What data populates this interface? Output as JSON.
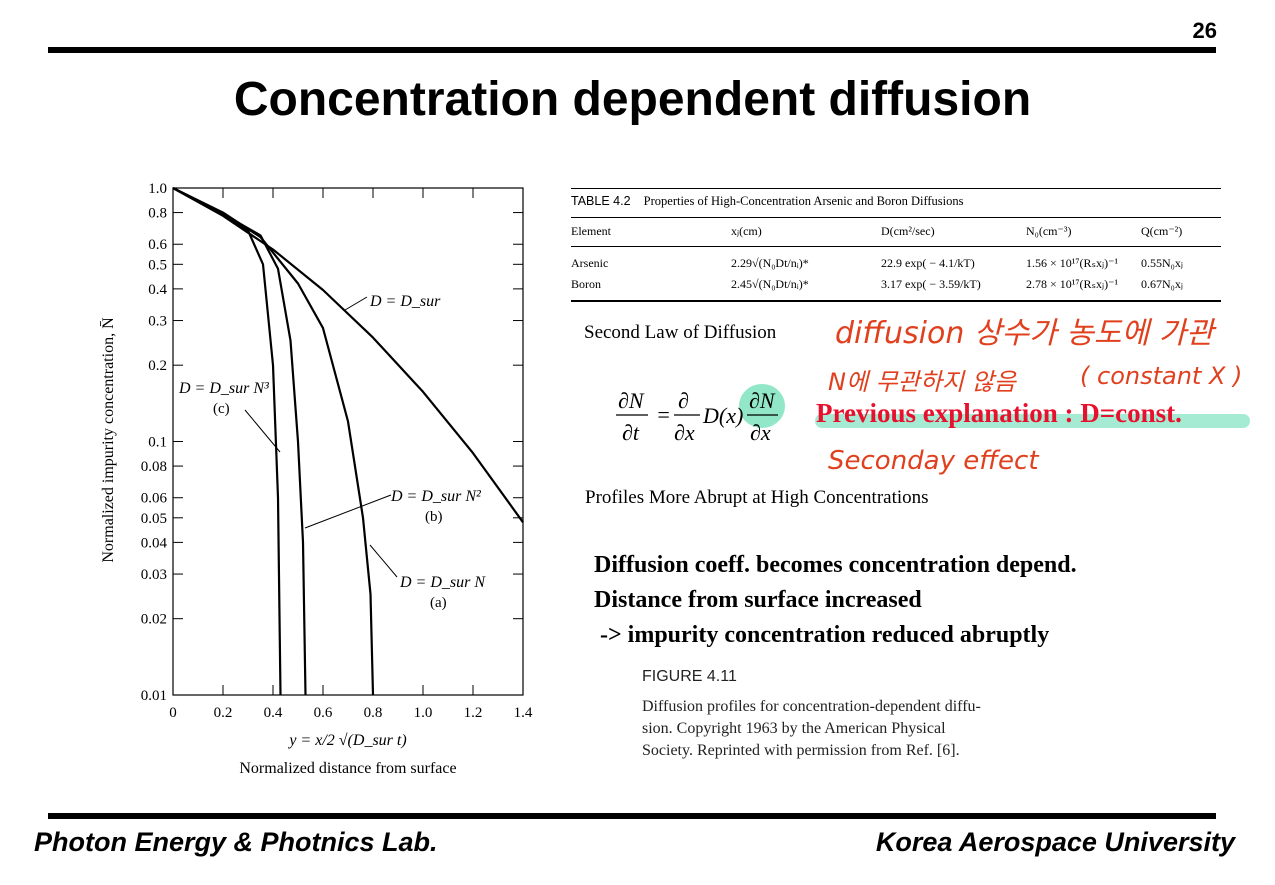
{
  "page_number": "26",
  "title": "Concentration dependent diffusion",
  "footer": {
    "left": "Photon Energy & Photnics Lab.",
    "right": "Korea Aerospace University"
  },
  "chart_data": {
    "type": "line",
    "xlabel_formula": "y = x/2 √(D_sur t)",
    "xlabel": "Normalized distance from surface",
    "ylabel": "Normalized impurity concentration, N̄",
    "x_ticks": [
      "0",
      "0.2",
      "0.4",
      "0.6",
      "0.8",
      "1.0",
      "1.2",
      "1.4"
    ],
    "y_ticks": [
      "1.0",
      "0.8",
      "0.6",
      "0.5",
      "0.4",
      "0.3",
      "0.2",
      "0.1",
      "0.08",
      "0.06",
      "0.05",
      "0.04",
      "0.03",
      "0.02",
      "0.01"
    ],
    "xlim": [
      0,
      1.4
    ],
    "ylim": [
      0.01,
      1.0
    ],
    "yscale": "log",
    "series": [
      {
        "name": "D = D_sur",
        "x": [
          0,
          0.2,
          0.4,
          0.6,
          0.8,
          1.0,
          1.2,
          1.4
        ],
        "values": [
          1.0,
          0.777,
          0.572,
          0.396,
          0.257,
          0.157,
          0.09,
          0.048
        ]
      },
      {
        "name": "D = D_sur N",
        "label_line2": "(a)",
        "x": [
          0,
          0.2,
          0.35,
          0.5,
          0.6,
          0.7,
          0.76,
          0.79,
          0.8
        ],
        "values": [
          1.0,
          0.8,
          0.64,
          0.42,
          0.28,
          0.12,
          0.05,
          0.025,
          0.01
        ]
      },
      {
        "name": "D = D_sur N²",
        "label_line2": "(b)",
        "x": [
          0,
          0.2,
          0.35,
          0.42,
          0.47,
          0.5,
          0.52,
          0.53
        ],
        "values": [
          1.0,
          0.79,
          0.65,
          0.48,
          0.25,
          0.1,
          0.04,
          0.01
        ]
      },
      {
        "name": "D = D_sur N³",
        "label_line2": "(c)",
        "x": [
          0,
          0.2,
          0.3,
          0.36,
          0.4,
          0.42,
          0.43
        ],
        "values": [
          1.0,
          0.78,
          0.68,
          0.5,
          0.2,
          0.06,
          0.01
        ]
      }
    ]
  },
  "table": {
    "label": "TABLE 4.2",
    "caption": "Properties of High-Concentration Arsenic and Boron Diffusions",
    "headers": [
      "Element",
      "xⱼ(cm)",
      "D(cm²/sec)",
      "N₀(cm⁻³)",
      "Q(cm⁻²)"
    ],
    "rows": [
      [
        "Arsenic",
        "2.29√(N₀Dt/nᵢ)*",
        "22.9  exp( − 4.1/kT)",
        "1.56 × 10¹⁷(Rₛxⱼ)⁻¹",
        "0.55N₀xⱼ"
      ],
      [
        "Boron",
        "2.45√(N₀Dt/nᵢ)*",
        "3.17  exp( − 3.59/kT)",
        "2.78 × 10¹⁷(Rₛxⱼ)⁻¹",
        "0.67N₀xⱼ"
      ]
    ]
  },
  "notes": {
    "second_law": "Second Law of Diffusion",
    "profiles": "Profiles More Abrupt at High Concentrations",
    "previous_explanation": "Previous explanation : D=const.",
    "hand_1": "diffusion 상수가 농도에 가관",
    "hand_2": "N에 무관하지 않음",
    "hand_3": "( constant X )",
    "hand_4": "Seconday effect",
    "bold_lines": [
      "Diffusion coeff. becomes concentration depend.",
      "Distance from surface increased",
      " -> impurity concentration reduced abruptly"
    ]
  },
  "figure": {
    "label": "FIGURE 4.11",
    "caption_lines": [
      "Diffusion profiles for concentration-dependent diffu-",
      "sion. Copyright 1963 by the American Physical",
      "Society. Reprinted with permission from Ref. [6]."
    ]
  },
  "colors": {
    "red": "#e8112d",
    "handwriting": "#e0401e",
    "highlight": "#7fe3c0"
  }
}
